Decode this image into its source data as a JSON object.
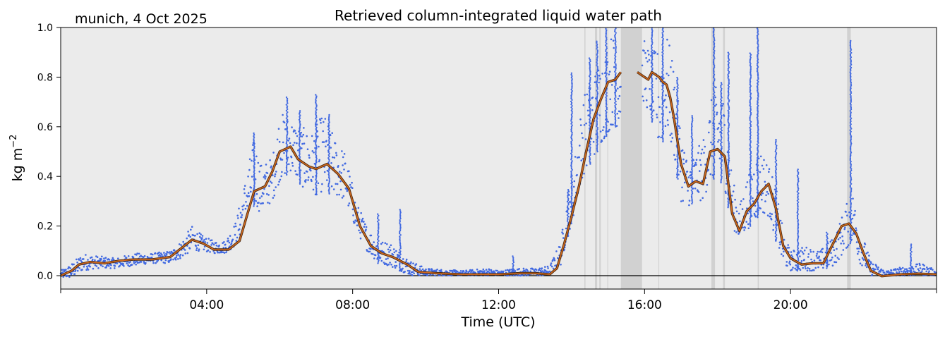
{
  "chart_data": {
    "type": "scatter",
    "location_date": "munich, 4 Oct 2025",
    "title": "Retrieved column-integrated liquid water path",
    "xlabel": "Time (UTC)",
    "ylabel": "kg m",
    "ylabel_sup": "−2",
    "xlim_hours": [
      0,
      24
    ],
    "ylim": [
      -0.05,
      1.0
    ],
    "x_ticks": [
      {
        "hour": 4,
        "label": "04:00"
      },
      {
        "hour": 8,
        "label": "08:00"
      },
      {
        "hour": 12,
        "label": "12:00"
      },
      {
        "hour": 16,
        "label": "16:00"
      },
      {
        "hour": 20,
        "label": "20:00"
      }
    ],
    "x_minor_ticks_hours": [
      0,
      24
    ],
    "y_ticks": [
      {
        "value": 0.0,
        "label": "0.0"
      },
      {
        "value": 0.2,
        "label": "0.2"
      },
      {
        "value": 0.4,
        "label": "0.4"
      },
      {
        "value": 0.6,
        "label": "0.6"
      },
      {
        "value": 0.8,
        "label": "0.8"
      },
      {
        "value": 1.0,
        "label": "1.0"
      }
    ],
    "zero_line": 0.0,
    "flagged_periods_hours": [
      [
        14.35,
        14.38
      ],
      [
        14.64,
        14.7
      ],
      [
        14.76,
        14.8
      ],
      [
        14.98,
        15.0
      ],
      [
        15.35,
        15.93
      ],
      [
        16.38,
        16.4
      ],
      [
        17.83,
        17.93
      ],
      [
        18.15,
        18.2
      ],
      [
        19.1,
        19.13
      ],
      [
        21.55,
        21.65
      ]
    ],
    "series": [
      {
        "kind": "raw-points",
        "color": "#4169e1",
        "envelope": [
          [
            0.0,
            -0.01,
            0.02
          ],
          [
            0.3,
            -0.01,
            0.05
          ],
          [
            0.6,
            0.02,
            0.09
          ],
          [
            1.0,
            0.03,
            0.08
          ],
          [
            1.5,
            0.03,
            0.07
          ],
          [
            2.0,
            0.04,
            0.09
          ],
          [
            2.5,
            0.05,
            0.09
          ],
          [
            3.0,
            0.05,
            0.1
          ],
          [
            3.3,
            0.07,
            0.14
          ],
          [
            3.6,
            0.1,
            0.2
          ],
          [
            3.9,
            0.1,
            0.16
          ],
          [
            4.2,
            0.09,
            0.14
          ],
          [
            4.5,
            0.09,
            0.14
          ],
          [
            4.8,
            0.12,
            0.22
          ],
          [
            5.1,
            0.22,
            0.42
          ],
          [
            5.3,
            0.28,
            0.56
          ],
          [
            5.5,
            0.25,
            0.45
          ],
          [
            5.8,
            0.3,
            0.48
          ],
          [
            6.0,
            0.38,
            0.66
          ],
          [
            6.3,
            0.42,
            0.64
          ],
          [
            6.6,
            0.36,
            0.6
          ],
          [
            6.9,
            0.32,
            0.58
          ],
          [
            7.2,
            0.34,
            0.66
          ],
          [
            7.5,
            0.32,
            0.56
          ],
          [
            7.8,
            0.3,
            0.5
          ],
          [
            8.1,
            0.18,
            0.3
          ],
          [
            8.4,
            0.1,
            0.2
          ],
          [
            8.7,
            0.05,
            0.14
          ],
          [
            9.0,
            0.04,
            0.14
          ],
          [
            9.3,
            0.02,
            0.1
          ],
          [
            9.6,
            0.0,
            0.06
          ],
          [
            10.0,
            0.0,
            0.03
          ],
          [
            11.0,
            0.0,
            0.02
          ],
          [
            11.7,
            0.0,
            0.03
          ],
          [
            12.0,
            0.0,
            0.02
          ],
          [
            12.5,
            0.0,
            0.03
          ],
          [
            13.0,
            0.0,
            0.03
          ],
          [
            13.4,
            0.0,
            0.04
          ],
          [
            13.7,
            0.04,
            0.14
          ],
          [
            13.9,
            0.16,
            0.34
          ],
          [
            14.1,
            0.26,
            0.5
          ],
          [
            14.3,
            0.4,
            0.72
          ],
          [
            14.5,
            0.45,
            0.78
          ],
          [
            14.7,
            0.5,
            0.85
          ],
          [
            14.9,
            0.55,
            0.92
          ],
          [
            15.1,
            0.6,
            0.98
          ],
          [
            15.3,
            0.6,
            0.95
          ],
          [
            16.0,
            0.7,
            0.95
          ],
          [
            16.2,
            0.62,
            0.9
          ],
          [
            16.4,
            0.5,
            0.92
          ],
          [
            16.6,
            0.58,
            0.98
          ],
          [
            16.8,
            0.48,
            0.86
          ],
          [
            17.0,
            0.3,
            0.6
          ],
          [
            17.2,
            0.28,
            0.45
          ],
          [
            17.4,
            0.3,
            0.5
          ],
          [
            17.6,
            0.3,
            0.55
          ],
          [
            17.8,
            0.38,
            0.7
          ],
          [
            18.0,
            0.4,
            0.78
          ],
          [
            18.2,
            0.35,
            0.72
          ],
          [
            18.4,
            0.2,
            0.4
          ],
          [
            18.6,
            0.14,
            0.28
          ],
          [
            18.8,
            0.18,
            0.4
          ],
          [
            19.0,
            0.22,
            0.48
          ],
          [
            19.2,
            0.25,
            0.52
          ],
          [
            19.4,
            0.24,
            0.45
          ],
          [
            19.6,
            0.14,
            0.36
          ],
          [
            19.8,
            0.04,
            0.18
          ],
          [
            20.0,
            0.02,
            0.1
          ],
          [
            20.4,
            0.02,
            0.12
          ],
          [
            20.8,
            0.02,
            0.1
          ],
          [
            21.2,
            0.04,
            0.16
          ],
          [
            21.5,
            0.1,
            0.28
          ],
          [
            21.7,
            0.14,
            0.34
          ],
          [
            21.9,
            0.05,
            0.2
          ],
          [
            22.2,
            0.0,
            0.06
          ],
          [
            22.6,
            0.0,
            0.02
          ],
          [
            23.2,
            0.0,
            0.04
          ],
          [
            23.6,
            0.0,
            0.05
          ],
          [
            24.0,
            0.0,
            0.02
          ]
        ],
        "spikes": [
          [
            5.3,
            0.58
          ],
          [
            6.2,
            0.72
          ],
          [
            6.55,
            0.67
          ],
          [
            7.0,
            0.73
          ],
          [
            7.35,
            0.65
          ],
          [
            8.7,
            0.25
          ],
          [
            9.3,
            0.27
          ],
          [
            12.4,
            0.08
          ],
          [
            13.9,
            0.35
          ],
          [
            14.0,
            0.82
          ],
          [
            14.5,
            0.88
          ],
          [
            14.7,
            0.95
          ],
          [
            14.95,
            1.0
          ],
          [
            15.2,
            1.0
          ],
          [
            16.2,
            1.0
          ],
          [
            16.5,
            1.0
          ],
          [
            16.9,
            0.8
          ],
          [
            17.3,
            0.65
          ],
          [
            17.9,
            1.0
          ],
          [
            18.1,
            0.78
          ],
          [
            18.3,
            0.9
          ],
          [
            18.9,
            0.9
          ],
          [
            19.1,
            1.0
          ],
          [
            19.6,
            0.55
          ],
          [
            20.2,
            0.43
          ],
          [
            21.0,
            0.18
          ],
          [
            21.65,
            0.95
          ],
          [
            23.3,
            0.13
          ]
        ]
      },
      {
        "kind": "smoothed-line",
        "color": "#d2691e",
        "edge_color": "#4a2a10",
        "points": [
          [
            0.0,
            0.0
          ],
          [
            0.3,
            0.02
          ],
          [
            0.5,
            0.045
          ],
          [
            0.8,
            0.055
          ],
          [
            1.2,
            0.05
          ],
          [
            1.6,
            0.06
          ],
          [
            2.0,
            0.065
          ],
          [
            2.5,
            0.065
          ],
          [
            3.0,
            0.075
          ],
          [
            3.3,
            0.11
          ],
          [
            3.6,
            0.145
          ],
          [
            3.9,
            0.13
          ],
          [
            4.2,
            0.105
          ],
          [
            4.6,
            0.105
          ],
          [
            4.9,
            0.14
          ],
          [
            5.1,
            0.24
          ],
          [
            5.3,
            0.34
          ],
          [
            5.6,
            0.36
          ],
          [
            5.8,
            0.42
          ],
          [
            6.0,
            0.5
          ],
          [
            6.3,
            0.52
          ],
          [
            6.5,
            0.47
          ],
          [
            6.8,
            0.44
          ],
          [
            7.0,
            0.43
          ],
          [
            7.3,
            0.45
          ],
          [
            7.6,
            0.41
          ],
          [
            7.9,
            0.35
          ],
          [
            8.2,
            0.2
          ],
          [
            8.5,
            0.12
          ],
          [
            8.8,
            0.09
          ],
          [
            9.1,
            0.075
          ],
          [
            9.5,
            0.045
          ],
          [
            9.8,
            0.015
          ],
          [
            10.3,
            0.01
          ],
          [
            11.0,
            0.005
          ],
          [
            12.0,
            0.005
          ],
          [
            12.6,
            0.01
          ],
          [
            13.0,
            0.01
          ],
          [
            13.4,
            0.005
          ],
          [
            13.6,
            0.03
          ],
          [
            13.8,
            0.13
          ],
          [
            14.0,
            0.24
          ],
          [
            14.2,
            0.36
          ],
          [
            14.4,
            0.5
          ],
          [
            14.6,
            0.63
          ],
          [
            14.8,
            0.71
          ],
          [
            15.0,
            0.78
          ],
          [
            15.2,
            0.79
          ],
          [
            15.35,
            0.82
          ],
          null,
          [
            15.8,
            0.82
          ],
          [
            16.0,
            0.8
          ],
          [
            16.1,
            0.79
          ],
          [
            16.2,
            0.82
          ],
          [
            16.4,
            0.8
          ],
          [
            16.5,
            0.78
          ],
          [
            16.6,
            0.77
          ],
          [
            16.7,
            0.72
          ],
          [
            16.8,
            0.64
          ],
          [
            17.0,
            0.45
          ],
          [
            17.2,
            0.36
          ],
          [
            17.4,
            0.38
          ],
          [
            17.6,
            0.37
          ],
          [
            17.8,
            0.5
          ],
          [
            18.0,
            0.51
          ],
          [
            18.2,
            0.48
          ],
          [
            18.4,
            0.25
          ],
          [
            18.6,
            0.18
          ],
          [
            18.8,
            0.26
          ],
          [
            19.0,
            0.29
          ],
          [
            19.2,
            0.34
          ],
          [
            19.4,
            0.37
          ],
          [
            19.6,
            0.27
          ],
          [
            19.8,
            0.12
          ],
          [
            20.0,
            0.07
          ],
          [
            20.3,
            0.045
          ],
          [
            20.6,
            0.05
          ],
          [
            20.9,
            0.05
          ],
          [
            21.1,
            0.11
          ],
          [
            21.4,
            0.2
          ],
          [
            21.6,
            0.21
          ],
          [
            21.8,
            0.17
          ],
          [
            22.0,
            0.09
          ],
          [
            22.2,
            0.02
          ],
          [
            22.5,
            -0.002
          ],
          [
            23.0,
            0.005
          ],
          [
            23.5,
            0.008
          ],
          [
            24.0,
            0.005
          ]
        ]
      }
    ]
  }
}
